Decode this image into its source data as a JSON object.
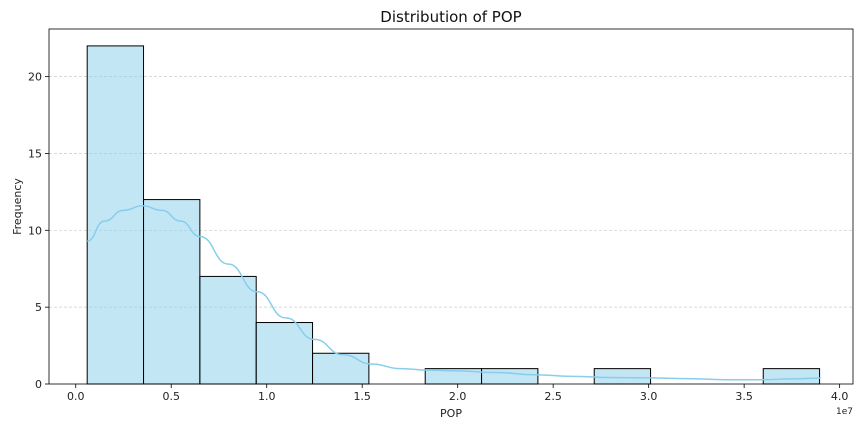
{
  "chart_data": {
    "type": "bar",
    "subtype": "histogram",
    "title": "Distribution of POP",
    "xlabel": "POP",
    "ylabel": "Frequency",
    "x_offset_text": "1e7",
    "xlim": [
      -0.14,
      4.07
    ],
    "ylim": [
      0,
      23.1
    ],
    "x_ticks": [
      0.0,
      0.5,
      1.0,
      1.5,
      2.0,
      2.5,
      3.0,
      3.5,
      4.0
    ],
    "x_tick_labels": [
      "0.0",
      "0.5",
      "1.0",
      "1.5",
      "2.0",
      "2.5",
      "3.0",
      "3.5",
      "4.0"
    ],
    "y_ticks": [
      0,
      5,
      10,
      15,
      20
    ],
    "y_tick_labels": [
      "0",
      "5",
      "10",
      "15",
      "20"
    ],
    "bins": [
      {
        "x0": 0.06,
        "x1": 0.355,
        "count": 22
      },
      {
        "x0": 0.355,
        "x1": 0.65,
        "count": 12
      },
      {
        "x0": 0.65,
        "x1": 0.945,
        "count": 7
      },
      {
        "x0": 0.945,
        "x1": 1.24,
        "count": 4
      },
      {
        "x0": 1.24,
        "x1": 1.535,
        "count": 2
      },
      {
        "x0": 1.535,
        "x1": 1.83,
        "count": 0
      },
      {
        "x0": 1.83,
        "x1": 2.125,
        "count": 1
      },
      {
        "x0": 2.125,
        "x1": 2.42,
        "count": 1
      },
      {
        "x0": 2.42,
        "x1": 2.715,
        "count": 0
      },
      {
        "x0": 2.715,
        "x1": 3.01,
        "count": 1
      },
      {
        "x0": 3.01,
        "x1": 3.305,
        "count": 0
      },
      {
        "x0": 3.305,
        "x1": 3.6,
        "count": 0
      },
      {
        "x0": 3.6,
        "x1": 3.895,
        "count": 1
      }
    ],
    "kde": {
      "x": [
        0.06,
        0.15,
        0.25,
        0.35,
        0.45,
        0.55,
        0.65,
        0.8,
        0.95,
        1.1,
        1.25,
        1.4,
        1.55,
        1.7,
        1.85,
        2.0,
        2.2,
        2.4,
        2.6,
        2.8,
        3.0,
        3.2,
        3.4,
        3.6,
        3.75,
        3.9
      ],
      "y": [
        9.3,
        10.6,
        11.3,
        11.6,
        11.3,
        10.6,
        9.6,
        7.8,
        6.0,
        4.3,
        2.9,
        1.9,
        1.3,
        1.0,
        0.9,
        0.85,
        0.75,
        0.6,
        0.5,
        0.42,
        0.4,
        0.35,
        0.28,
        0.28,
        0.33,
        0.38
      ]
    },
    "grid": "y",
    "colors": {
      "bar_fill": "#87ceeb",
      "bar_fill_opacity": 0.5,
      "bar_edge": "#000000",
      "kde_line": "#87ceeb",
      "grid": "#cccccc"
    }
  }
}
